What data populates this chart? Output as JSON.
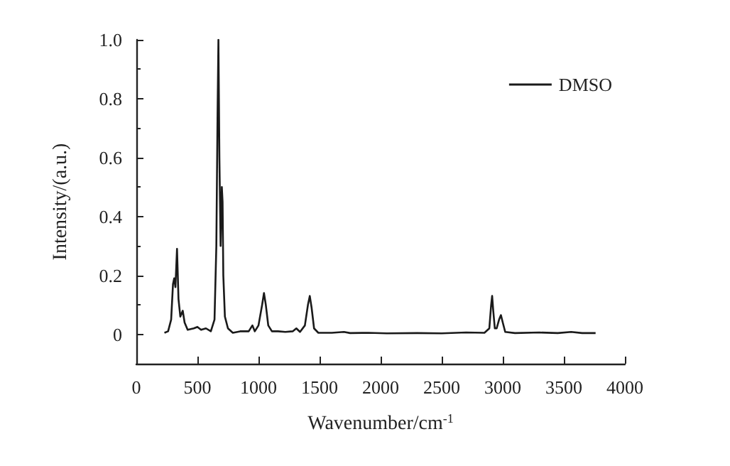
{
  "chart_data": {
    "type": "line",
    "xlabel": "Wavenumber/cm$^{-1}$",
    "ylabel": "Intensity/(a.u.)",
    "xlim": [
      0,
      4000
    ],
    "xticks": [
      0,
      500,
      1000,
      1500,
      2000,
      2500,
      3000,
      3500,
      4000
    ],
    "ylim": [
      -0.1,
      1.0
    ],
    "yticks": [
      0,
      0.2,
      0.4,
      0.6,
      0.8,
      {
        "value": 1,
        "label": "1.0"
      }
    ],
    "grid": false,
    "legend": "top right",
    "marker": "none",
    "line_style": "solid",
    "x": [
      230,
      260,
      285,
      300,
      310,
      320,
      333,
      345,
      360,
      380,
      395,
      420,
      470,
      500,
      530,
      570,
      610,
      640,
      655,
      665,
      672,
      680,
      690,
      700,
      706,
      712,
      725,
      750,
      790,
      850,
      920,
      950,
      970,
      1000,
      1030,
      1045,
      1060,
      1080,
      1110,
      1160,
      1220,
      1280,
      1310,
      1340,
      1380,
      1405,
      1420,
      1435,
      1455,
      1490,
      1600,
      1700,
      1750,
      1900,
      2050,
      2300,
      2500,
      2700,
      2850,
      2890,
      2905,
      2913,
      2922,
      2935,
      2950,
      2970,
      2985,
      3000,
      3020,
      3100,
      3300,
      3450,
      3560,
      3650,
      3760
    ],
    "series": [
      {
        "name": "DMSO",
        "color": "#1a1a1a",
        "values": [
          0.005,
          0.01,
          0.05,
          0.17,
          0.19,
          0.16,
          0.29,
          0.12,
          0.06,
          0.08,
          0.04,
          0.015,
          0.02,
          0.025,
          0.015,
          0.02,
          0.01,
          0.05,
          0.3,
          0.75,
          1.0,
          0.6,
          0.3,
          0.5,
          0.45,
          0.2,
          0.06,
          0.02,
          0.005,
          0.01,
          0.01,
          0.03,
          0.01,
          0.03,
          0.1,
          0.14,
          0.1,
          0.03,
          0.01,
          0.01,
          0.008,
          0.01,
          0.02,
          0.008,
          0.03,
          0.1,
          0.13,
          0.09,
          0.02,
          0.005,
          0.005,
          0.008,
          0.004,
          0.005,
          0.003,
          0.004,
          0.003,
          0.006,
          0.005,
          0.02,
          0.1,
          0.13,
          0.08,
          0.02,
          0.02,
          0.05,
          0.065,
          0.04,
          0.008,
          0.004,
          0.006,
          0.004,
          0.008,
          0.004,
          0.004
        ]
      }
    ]
  }
}
